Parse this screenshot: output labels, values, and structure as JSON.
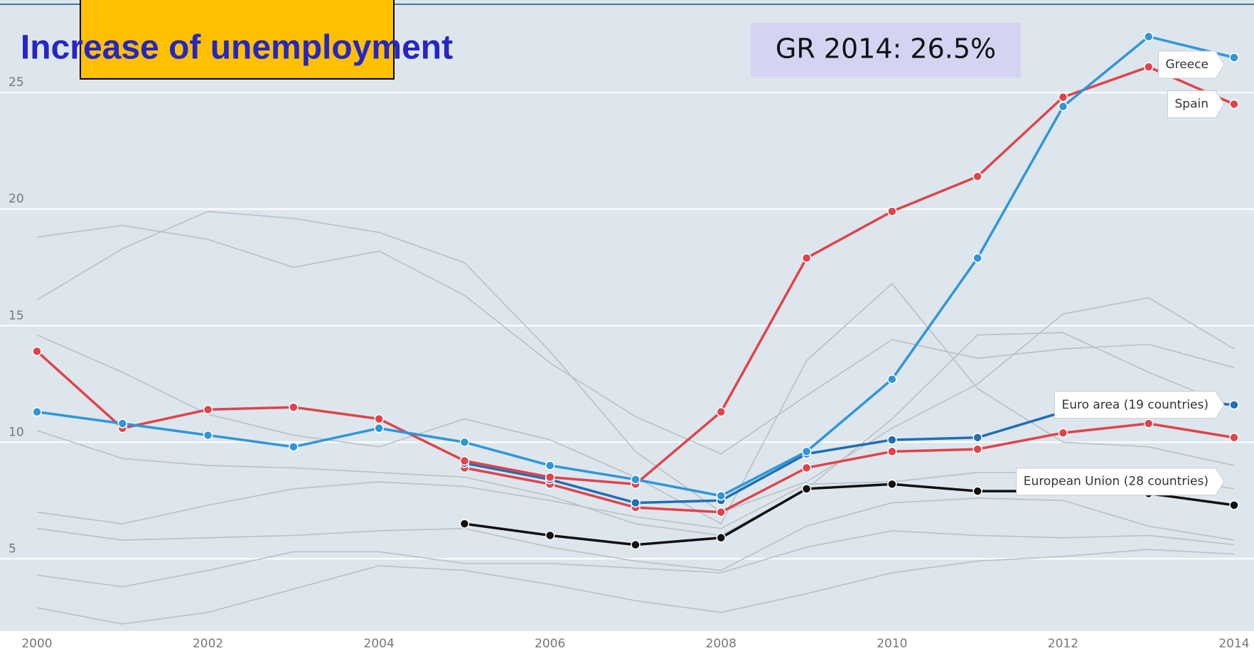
{
  "chart_data": {
    "type": "line",
    "title": "Increase of unemployment",
    "annotation": "GR 2014: 26.5%",
    "x": [
      2000,
      2001,
      2002,
      2003,
      2004,
      2005,
      2006,
      2007,
      2008,
      2009,
      2010,
      2011,
      2012,
      2013,
      2014
    ],
    "xlim": [
      2000,
      2014
    ],
    "xticks": [
      2000,
      2002,
      2004,
      2006,
      2008,
      2010,
      2012,
      2014
    ],
    "ylim": [
      1.9,
      29
    ],
    "yticks": [
      5,
      10,
      15,
      20,
      25
    ],
    "grid": true,
    "series": [
      {
        "color": "#b9c0c7",
        "values": [
          18.8,
          19.3,
          18.7,
          17.5,
          18.2,
          16.3,
          13.4,
          11.1,
          9.5,
          12,
          14.4,
          13.6,
          14,
          14.2,
          13.2
        ]
      },
      {
        "color": "#b9c0c7",
        "values": [
          16.1,
          18.3,
          19.9,
          19.6,
          19,
          17.7,
          13.9,
          9.6,
          7,
          8.3,
          10.6,
          12.5,
          15.5,
          16.2,
          14
        ]
      },
      {
        "color": "#b9c0c7",
        "values": [
          14.6,
          13,
          11.2,
          10.3,
          9.8,
          11,
          10.1,
          8.5,
          6.5,
          13.5,
          16.8,
          12.3,
          10,
          9.8,
          9
        ]
      },
      {
        "color": "#b9c0c7",
        "values": [
          10.5,
          9.3,
          9,
          8.9,
          8.7,
          8.5,
          7.7,
          6.5,
          6,
          8,
          11,
          14.6,
          14.7,
          13,
          11.5
        ]
      },
      {
        "color": "#b9c0c7",
        "values": [
          7,
          6.5,
          7.3,
          8,
          8.3,
          8.1,
          7.5,
          6.8,
          6.3,
          8.2,
          8.3,
          8.7,
          8.7,
          8.6,
          8
        ]
      },
      {
        "color": "#b9c0c7",
        "values": [
          6.3,
          5.8,
          5.9,
          6,
          6.2,
          6.3,
          5.5,
          4.9,
          4.5,
          6.4,
          7.4,
          7.6,
          7.5,
          6.4,
          5.8
        ]
      },
      {
        "color": "#b9c0c7",
        "values": [
          4.3,
          3.8,
          4.5,
          5.3,
          5.3,
          4.8,
          4.8,
          4.6,
          4.4,
          5.5,
          6.2,
          6,
          5.9,
          6,
          5.6
        ]
      },
      {
        "color": "#b9c0c7",
        "values": [
          2.9,
          2.2,
          2.7,
          3.7,
          4.7,
          4.5,
          3.9,
          3.2,
          2.7,
          3.5,
          4.4,
          4.9,
          5.1,
          5.4,
          5.2
        ]
      },
      {
        "color": "#111111",
        "values": [
          null,
          null,
          null,
          null,
          null,
          6.5,
          6,
          5.6,
          5.9,
          8,
          8.2,
          7.9,
          7.9,
          7.8,
          7.3
        ]
      },
      {
        "name": "European Union (28 countries)",
        "color": "#e0434b",
        "values": [
          null,
          null,
          null,
          null,
          null,
          8.9,
          8.2,
          7.2,
          7,
          8.9,
          9.6,
          9.7,
          10.4,
          10.8,
          10.2
        ]
      },
      {
        "name": "Euro area (19 countries)",
        "color": "#1f6fb5",
        "values": [
          null,
          null,
          null,
          null,
          null,
          9.1,
          8.4,
          7.4,
          7.5,
          9.5,
          10.1,
          10.2,
          11.3,
          11.9,
          11.6
        ]
      },
      {
        "name": "Spain",
        "color": "#e0434b",
        "values": [
          13.9,
          10.6,
          11.4,
          11.5,
          11,
          9.2,
          8.5,
          8.2,
          11.3,
          17.9,
          19.9,
          21.4,
          24.8,
          26.1,
          24.5
        ]
      },
      {
        "name": "Greece",
        "color": "#2f96d8",
        "values": [
          11.3,
          10.8,
          10.3,
          9.8,
          10.6,
          10,
          9,
          8.4,
          7.7,
          9.6,
          12.7,
          17.9,
          24.4,
          27.4,
          26.5
        ]
      }
    ]
  }
}
